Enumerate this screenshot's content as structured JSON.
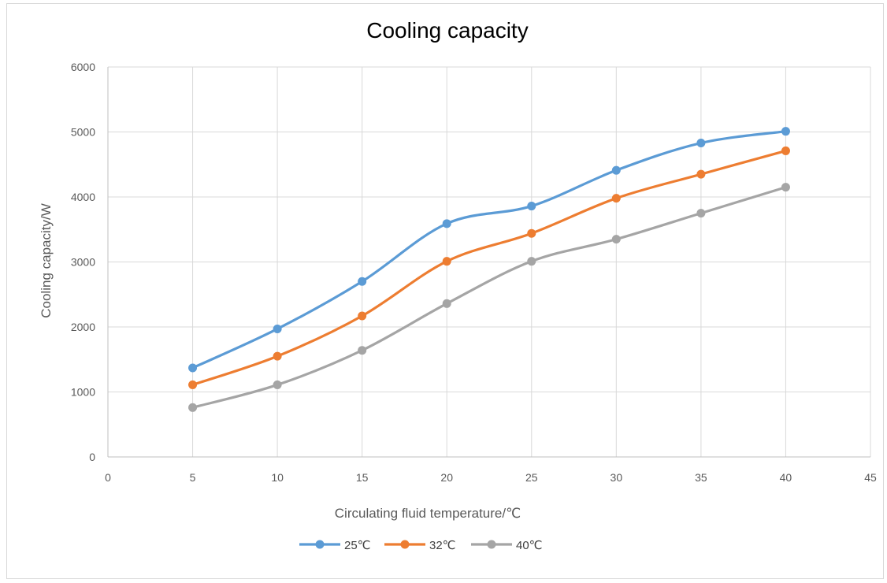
{
  "chart_data": {
    "type": "line",
    "title": "Cooling capacity",
    "xlabel": "Circulating fluid temperature/℃",
    "ylabel": "Cooling capacity/W",
    "xlim": [
      0,
      45
    ],
    "ylim": [
      0,
      6000
    ],
    "xticks": [
      0,
      5,
      10,
      15,
      20,
      25,
      30,
      35,
      40,
      45
    ],
    "yticks": [
      0,
      1000,
      2000,
      3000,
      4000,
      5000,
      6000
    ],
    "grid": true,
    "smooth": true,
    "legend_position": "bottom",
    "x": [
      5,
      10,
      15,
      20,
      25,
      30,
      35,
      40
    ],
    "series": [
      {
        "name": "25℃",
        "color": "#5b9bd5",
        "values": [
          1370,
          1970,
          2700,
          3590,
          3860,
          4410,
          4830,
          5010
        ]
      },
      {
        "name": "32℃",
        "color": "#ed7d31",
        "values": [
          1110,
          1550,
          2170,
          3010,
          3440,
          3980,
          4350,
          4710
        ]
      },
      {
        "name": "40℃",
        "color": "#a5a5a5",
        "values": [
          760,
          1110,
          1640,
          2360,
          3010,
          3350,
          3750,
          4150
        ]
      }
    ]
  }
}
